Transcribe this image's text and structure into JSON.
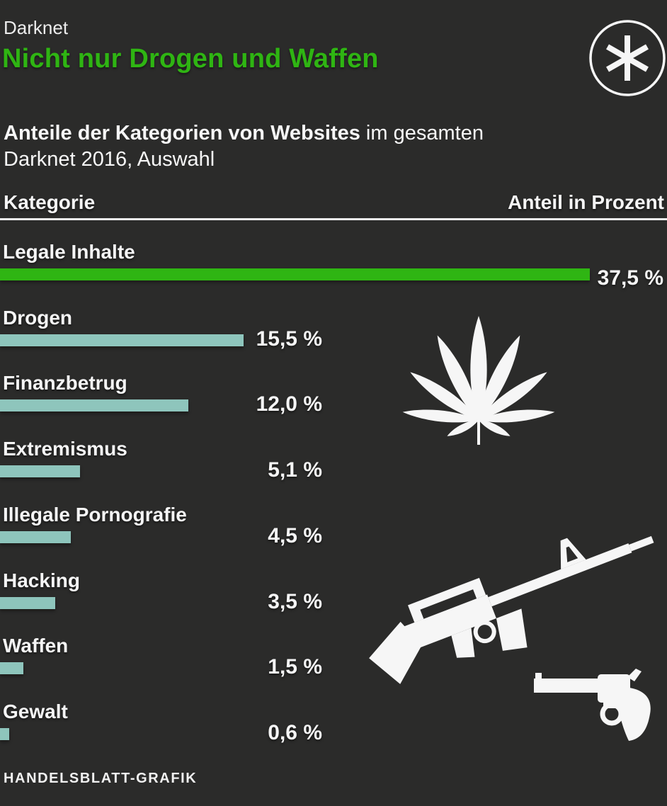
{
  "header": {
    "kicker": "Darknet",
    "title": "Nicht nur Drogen und Waffen"
  },
  "subtitle": {
    "bold": "Anteile der Kategorien von Websites",
    "regular_line1": " im gesamten",
    "line2": "Darknet 2016, Auswahl"
  },
  "table_header": {
    "category": "Kategorie",
    "value": "Anteil in Prozent"
  },
  "footer": {
    "credit": "HANDELSBLATT-GRAFIK"
  },
  "icons": [
    "asterisk-logo",
    "cannabis-leaf",
    "assault-rifle",
    "revolver"
  ],
  "colors": {
    "background": "#2b2b2a",
    "text": "#f5f5f5",
    "accent_green": "#2fb513",
    "bar_teal": "#8ec5bc",
    "rule": "#ededed"
  },
  "chart_data": {
    "type": "bar",
    "orientation": "horizontal",
    "title": "Nicht nur Drogen und Waffen",
    "subtitle": "Anteile der Kategorien von Websites im gesamten Darknet 2016, Auswahl",
    "unit": "Prozent",
    "categories": [
      "Legale Inhalte",
      "Drogen",
      "Finanzbetrug",
      "Extremismus",
      "Illegale Pornografie",
      "Hacking",
      "Waffen",
      "Gewalt"
    ],
    "values": [
      37.5,
      15.5,
      12.0,
      5.1,
      4.5,
      3.5,
      1.5,
      0.6
    ],
    "value_labels": [
      "37,5 %",
      "15,5 %",
      "12,0 %",
      "5,1 %",
      "4,5 %",
      "3,5 %",
      "1,5 %",
      "0,6 %"
    ],
    "bar_colors": [
      "#2fb513",
      "#8ec5bc",
      "#8ec5bc",
      "#8ec5bc",
      "#8ec5bc",
      "#8ec5bc",
      "#8ec5bc",
      "#8ec5bc"
    ],
    "xlim": [
      0,
      40
    ],
    "grid": false,
    "legend": false,
    "source": "HANDELSBLATT-GRAFIK"
  }
}
